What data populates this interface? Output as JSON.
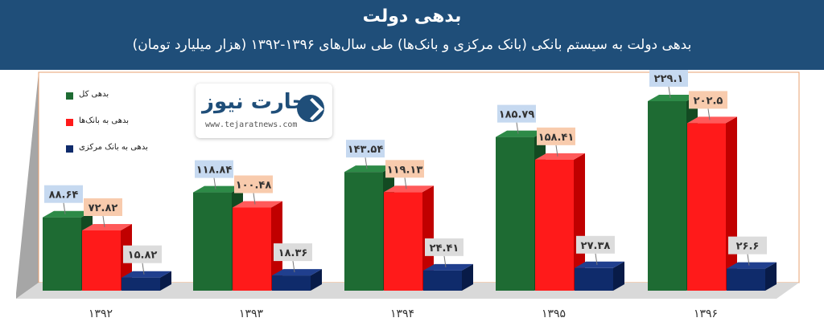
{
  "header": {
    "title": "بدهی دولت",
    "subtitle": "بدهی دولت به سیستم بانکی (بانک مرکزی و بانک‌ها) طی سال‌های ۱۳۹۶-۱۳۹۲ (هزار میلیارد تومان)"
  },
  "logo": {
    "brand": "تجارت نیوز",
    "site": "www.tejaratnews.com"
  },
  "chart_data": {
    "type": "bar",
    "categories": [
      "۱۳۹۲",
      "۱۳۹۳",
      "۱۳۹۴",
      "۱۳۹۵",
      "۱۳۹۶"
    ],
    "series": [
      {
        "name": "بدهی کل",
        "color": "#1e6b33",
        "side": "#134a22",
        "top": "#2d8a47",
        "labelBg": "#c6d9f0",
        "values": [
          88.64,
          118.84,
          143.54,
          185.79,
          229.1
        ],
        "labels": [
          "۸۸.۶۴",
          "۱۱۸.۸۴",
          "۱۴۳.۵۴",
          "۱۸۵.۷۹",
          "۲۲۹.۱"
        ]
      },
      {
        "name": "بدهی به بانک‌ها",
        "color": "#ff1a1a",
        "side": "#c00000",
        "top": "#ff5a5a",
        "labelBg": "#f8cbad",
        "values": [
          72.82,
          100.48,
          119.13,
          158.41,
          202.5
        ],
        "labels": [
          "۷۲.۸۲",
          "۱۰۰.۴۸",
          "۱۱۹.۱۳",
          "۱۵۸.۴۱",
          "۲۰۲.۵"
        ]
      },
      {
        "name": "بدهی به بانک مرکزی",
        "color": "#0f2b6b",
        "side": "#081b48",
        "top": "#203f8e",
        "labelBg": "#dcdcdc",
        "values": [
          15.82,
          18.36,
          24.41,
          27.38,
          26.6
        ],
        "labels": [
          "۱۵.۸۲",
          "۱۸.۳۶",
          "۲۴.۴۱",
          "۲۷.۳۸",
          "۲۶.۶"
        ]
      }
    ],
    "legend": "top-left",
    "grid": false
  }
}
